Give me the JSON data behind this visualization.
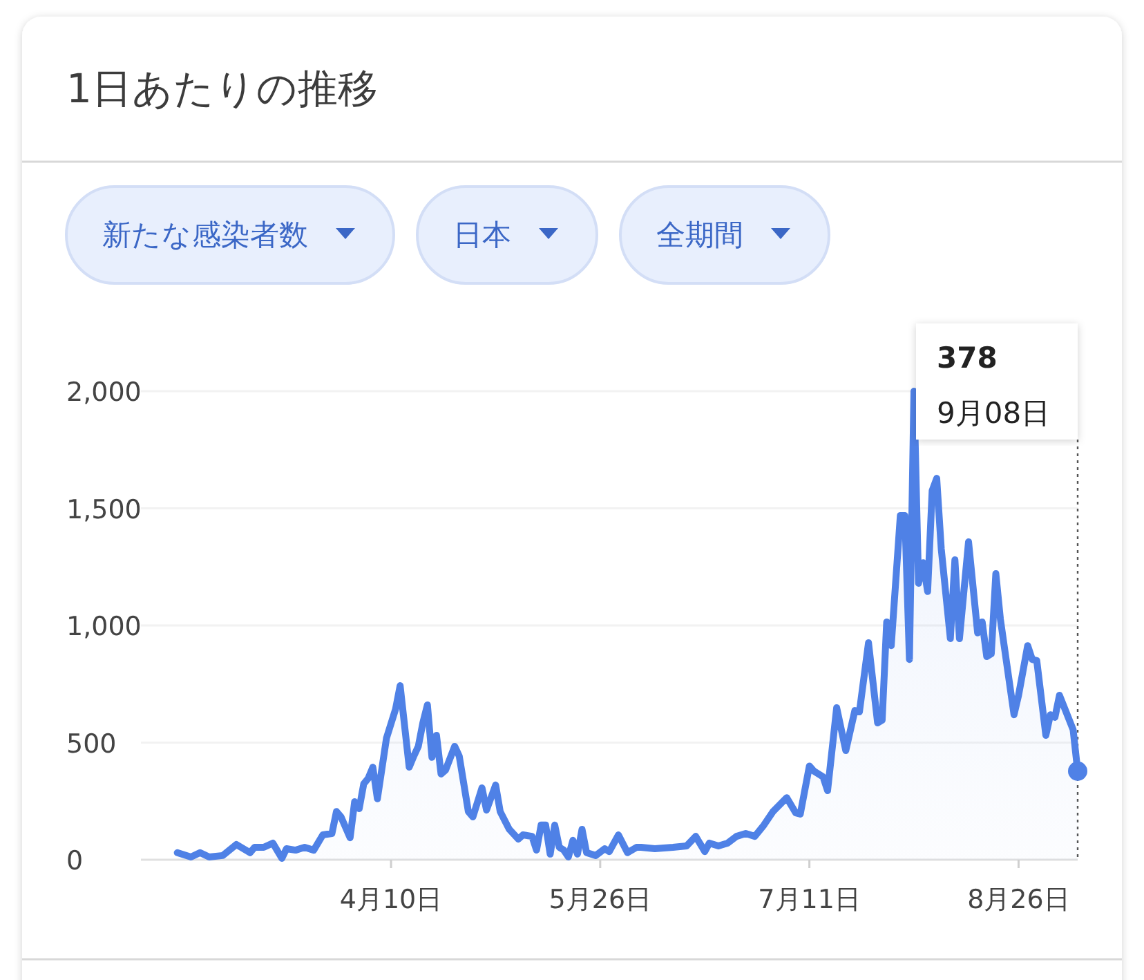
{
  "chart_data": {
    "type": "area",
    "title": "1日あたりの推移",
    "annotations": [
      "新たな感染者数",
      "日本",
      "全期間",
      "378",
      "9月08日"
    ],
    "x": [
      "--02-23",
      "--02-26",
      "--02-28",
      "--03-01",
      "--03-04",
      "--03-07",
      "--03-10",
      "--03-11",
      "--03-13",
      "--03-15",
      "--03-17",
      "--03-18",
      "--03-20",
      "--03-22",
      "--03-24",
      "--03-26",
      "--03-28",
      "--03-29",
      "--03-30",
      "--04-01",
      "--04-02",
      "--04-03",
      "--04-04",
      "--04-05",
      "--04-06",
      "--04-07",
      "--04-09",
      "--04-11",
      "--04-12",
      "--04-14",
      "--04-15",
      "--04-16",
      "--04-17",
      "--04-18",
      "--04-19",
      "--04-20",
      "--04-21",
      "--04-22",
      "--04-24",
      "--04-25",
      "--04-27",
      "--04-28",
      "--04-30",
      "--05-01",
      "--05-03",
      "--05-04",
      "--05-06",
      "--05-08",
      "--05-09",
      "--05-11",
      "--05-12",
      "--05-13",
      "--05-14",
      "--05-15",
      "--05-16",
      "--05-17",
      "--05-18",
      "--05-19",
      "--05-20",
      "--05-21",
      "--05-22",
      "--05-23",
      "--05-25",
      "--05-27",
      "--05-28",
      "--05-30",
      "--06-01",
      "--06-03",
      "--06-04",
      "--06-07",
      "--06-11",
      "--06-14",
      "--06-16",
      "--06-18",
      "--06-19",
      "--06-21",
      "--06-23",
      "--06-25",
      "--06-27",
      "--06-29",
      "--07-01",
      "--07-03",
      "--07-06",
      "--07-08",
      "--07-09",
      "--07-11",
      "--07-12",
      "--07-14",
      "--07-15",
      "--07-17",
      "--07-19",
      "--07-21",
      "--07-22",
      "--07-24",
      "--07-26",
      "--07-27",
      "--07-28",
      "--07-29",
      "--07-31",
      "--08-01",
      "--08-02",
      "--08-03",
      "--08-04",
      "--08-05",
      "--08-06",
      "--08-07",
      "--08-08",
      "--08-09",
      "--08-11",
      "--08-12",
      "--08-13",
      "--08-15",
      "--08-17",
      "--08-18",
      "--08-19",
      "--08-20",
      "--08-21",
      "--08-22",
      "--08-25",
      "--08-26",
      "--08-28",
      "--08-29",
      "--08-30",
      "--09-01",
      "--09-02",
      "--09-03",
      "--09-04",
      "--09-07",
      "--09-08"
    ],
    "series": [
      {
        "color": "#4f81e6",
        "values": [
          30,
          12,
          30,
          12,
          18,
          65,
          30,
          53,
          53,
          71,
          6,
          47,
          41,
          53,
          41,
          106,
          112,
          206,
          183,
          94,
          248,
          218,
          324,
          348,
          395,
          260,
          519,
          643,
          743,
          395,
          442,
          484,
          584,
          661,
          437,
          531,
          366,
          383,
          484,
          442,
          206,
          183,
          307,
          212,
          319,
          206,
          130,
          88,
          106,
          100,
          41,
          148,
          148,
          24,
          148,
          53,
          41,
          12,
          83,
          24,
          130,
          30,
          18,
          47,
          35,
          106,
          30,
          53,
          53,
          47,
          53,
          59,
          100,
          35,
          71,
          59,
          71,
          100,
          112,
          100,
          148,
          206,
          265,
          200,
          195,
          400,
          378,
          354,
          295,
          649,
          466,
          637,
          631,
          926,
          584,
          596,
          1015,
          914,
          1469,
          1469,
          855,
          2000,
          1180,
          1268,
          1145,
          1575,
          1628,
          1327,
          944,
          1280,
          944,
          1357,
          968,
          1015,
          867,
          879,
          1221,
          1027,
          619,
          702,
          914,
          855,
          850,
          531,
          619,
          608,
          702,
          555,
          378
        ]
      }
    ],
    "xlim": [
      "--02-15",
      "--09-08"
    ],
    "xticks": [
      {
        "value": "--04-10",
        "label": "4月10日"
      },
      {
        "value": "--05-26",
        "label": "5月26日"
      },
      {
        "value": "--07-11",
        "label": "7月11日"
      },
      {
        "value": "--08-26",
        "label": "8月26日"
      }
    ],
    "ylim": [
      0,
      2000
    ],
    "yticks": [
      0,
      500,
      {
        "value": 1000,
        "label": "1,000"
      },
      {
        "value": 1500,
        "label": "1,500"
      },
      {
        "value": 2000,
        "label": "2,000"
      }
    ],
    "grid": "y",
    "ref_lines": [
      {
        "axis": "x",
        "value": "--09-08",
        "line_style": "dotted",
        "color": "#555555"
      }
    ]
  }
}
